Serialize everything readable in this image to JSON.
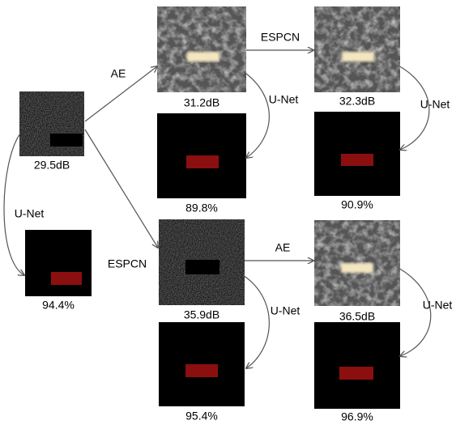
{
  "nodes": [
    {
      "caption": "29.5dB"
    },
    {
      "caption": "94.4%"
    },
    {
      "caption": "31.2dB"
    },
    {
      "caption": "89.8%"
    },
    {
      "caption": "32.3dB"
    },
    {
      "caption": "90.9%"
    },
    {
      "caption": "35.9dB"
    },
    {
      "caption": "95.4%"
    },
    {
      "caption": "36.5dB"
    },
    {
      "caption": "96.9%"
    }
  ],
  "edges": [
    {
      "label": "AE"
    },
    {
      "label": "ESPCN"
    },
    {
      "label": "U-Net"
    },
    {
      "label": "U-Net"
    },
    {
      "label": "U-Net"
    },
    {
      "label": "ESPCN"
    },
    {
      "label": "AE"
    },
    {
      "label": "U-Net"
    },
    {
      "label": "U-Net"
    }
  ]
}
